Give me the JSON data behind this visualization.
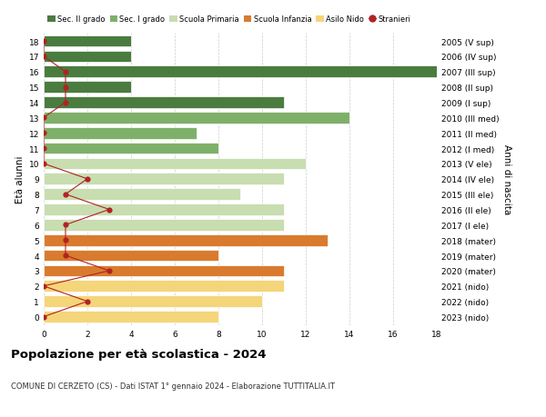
{
  "ages": [
    18,
    17,
    16,
    15,
    14,
    13,
    12,
    11,
    10,
    9,
    8,
    7,
    6,
    5,
    4,
    3,
    2,
    1,
    0
  ],
  "right_labels": [
    "2005 (V sup)",
    "2006 (IV sup)",
    "2007 (III sup)",
    "2008 (II sup)",
    "2009 (I sup)",
    "2010 (III med)",
    "2011 (II med)",
    "2012 (I med)",
    "2013 (V ele)",
    "2014 (IV ele)",
    "2015 (III ele)",
    "2016 (II ele)",
    "2017 (I ele)",
    "2018 (mater)",
    "2019 (mater)",
    "2020 (mater)",
    "2021 (nido)",
    "2022 (nido)",
    "2023 (nido)"
  ],
  "bar_values": [
    4,
    4,
    18,
    4,
    11,
    14,
    7,
    8,
    12,
    11,
    9,
    11,
    11,
    13,
    8,
    11,
    11,
    10,
    8
  ],
  "bar_colors": [
    "#4a7c40",
    "#4a7c40",
    "#4a7c40",
    "#4a7c40",
    "#4a7c40",
    "#7fb069",
    "#7fb069",
    "#7fb069",
    "#c8ddb0",
    "#c8ddb0",
    "#c8ddb0",
    "#c8ddb0",
    "#c8ddb0",
    "#d97b2e",
    "#d97b2e",
    "#d97b2e",
    "#f5d57a",
    "#f5d57a",
    "#f5d57a"
  ],
  "stranieri_values": [
    0,
    0,
    1,
    1,
    1,
    0,
    0,
    0,
    0,
    2,
    1,
    3,
    1,
    1,
    1,
    3,
    0,
    2,
    0
  ],
  "title": "Popolazione per età scolastica - 2024",
  "subtitle": "COMUNE DI CERZETO (CS) - Dati ISTAT 1° gennaio 2024 - Elaborazione TUTTITALIA.IT",
  "ylabel": "Età alunni",
  "ylabel_right": "Anni di nascita",
  "xlim": [
    0,
    18
  ],
  "legend_items": [
    {
      "label": "Sec. II grado",
      "color": "#4a7c40"
    },
    {
      "label": "Sec. I grado",
      "color": "#7fb069"
    },
    {
      "label": "Scuola Primaria",
      "color": "#c8ddb0"
    },
    {
      "label": "Scuola Infanzia",
      "color": "#d97b2e"
    },
    {
      "label": "Asilo Nido",
      "color": "#f5d57a"
    },
    {
      "label": "Stranieri",
      "color": "#b22222"
    }
  ],
  "grid_color": "#cccccc",
  "background_color": "#ffffff",
  "bar_height": 0.75
}
